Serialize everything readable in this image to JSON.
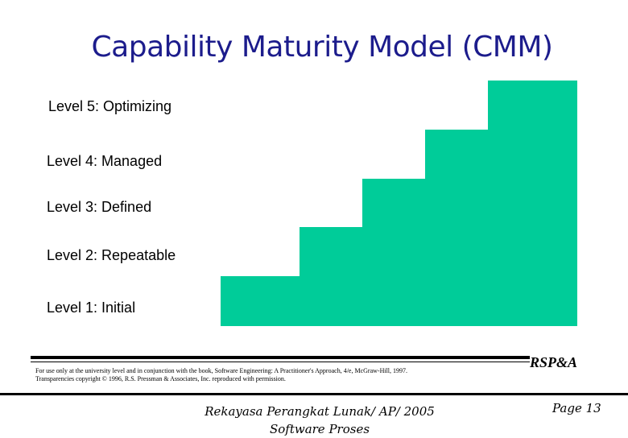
{
  "slide": {
    "title": "Capability Maturity Model (CMM)",
    "accent_color": "#00cc99",
    "title_color": "#1c1c8c"
  },
  "levels": [
    {
      "label": "Level 1: Initial",
      "step": 1
    },
    {
      "label": "Level 2: Repeatable",
      "step": 2
    },
    {
      "label": "Level 3: Defined",
      "step": 3
    },
    {
      "label": "Level 4: Managed",
      "step": 4
    },
    {
      "label": "Level 5: Optimizing",
      "step": 5
    }
  ],
  "copyright": {
    "line1": "For use only at the university level and in conjunction with the book, Software Engineering: A Practitioner's Approach, 4/e, McGraw-Hill, 1997.",
    "line2": "Transparencies copyright © 1996, R.S. Pressman & Associates, Inc. reproduced with permission.",
    "logo_text": "RSP&A",
    "logo_icon": "rspa-logo-icon"
  },
  "footer": {
    "line1": "Rekayasa Perangkat Lunak/ AP/ 2005",
    "line2": "Software Proses",
    "page": "Page 13"
  }
}
